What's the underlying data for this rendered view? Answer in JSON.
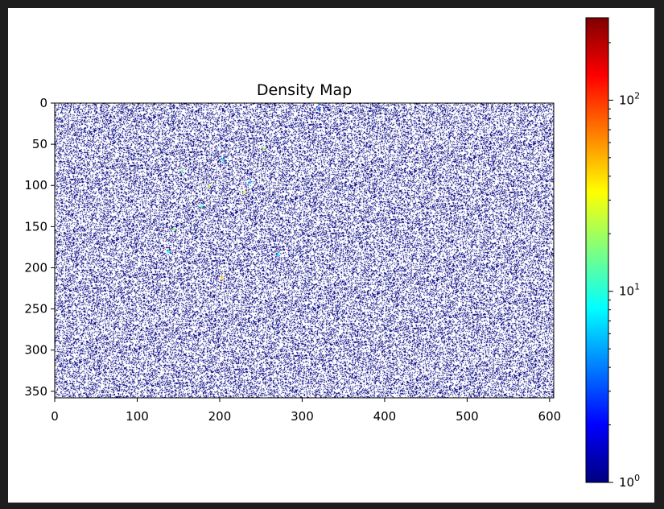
{
  "chart_data": {
    "type": "heatmap",
    "title": "Density Map",
    "xlabel": "",
    "ylabel": "",
    "x_range": [
      0,
      605
    ],
    "y_range": [
      0,
      358
    ],
    "y_inverted": true,
    "x_ticks": [
      0,
      100,
      200,
      300,
      400,
      500,
      600
    ],
    "y_ticks": [
      0,
      50,
      100,
      150,
      200,
      250,
      300,
      350
    ],
    "x_tick_labels": [
      "0",
      "100",
      "200",
      "300",
      "400",
      "500",
      "600"
    ],
    "y_tick_labels": [
      "0",
      "50",
      "100",
      "150",
      "200",
      "250",
      "300",
      "350"
    ],
    "colormap": "jet",
    "color_scale": "log",
    "color_range": [
      1,
      270
    ],
    "colorbar_ticks": [
      {
        "base": "10",
        "exp": "0",
        "value": 1
      },
      {
        "base": "10",
        "exp": "1",
        "value": 10
      },
      {
        "base": "10",
        "exp": "2",
        "value": 100
      }
    ],
    "background_color": "#ffffff",
    "fill_fraction": 0.28,
    "dominant_value": 1,
    "hotspots": [
      {
        "x": 320,
        "y": 6,
        "value": 4
      },
      {
        "x": 253,
        "y": 55,
        "value": 20
      },
      {
        "x": 204,
        "y": 68,
        "value": 8
      },
      {
        "x": 154,
        "y": 82,
        "value": 15
      },
      {
        "x": 236,
        "y": 96,
        "value": 6
      },
      {
        "x": 186,
        "y": 101,
        "value": 25
      },
      {
        "x": 229,
        "y": 108,
        "value": 30
      },
      {
        "x": 178,
        "y": 125,
        "value": 12
      },
      {
        "x": 144,
        "y": 153,
        "value": 18
      },
      {
        "x": 138,
        "y": 180,
        "value": 9
      },
      {
        "x": 270,
        "y": 184,
        "value": 8
      },
      {
        "x": 202,
        "y": 211,
        "value": 40
      }
    ]
  }
}
